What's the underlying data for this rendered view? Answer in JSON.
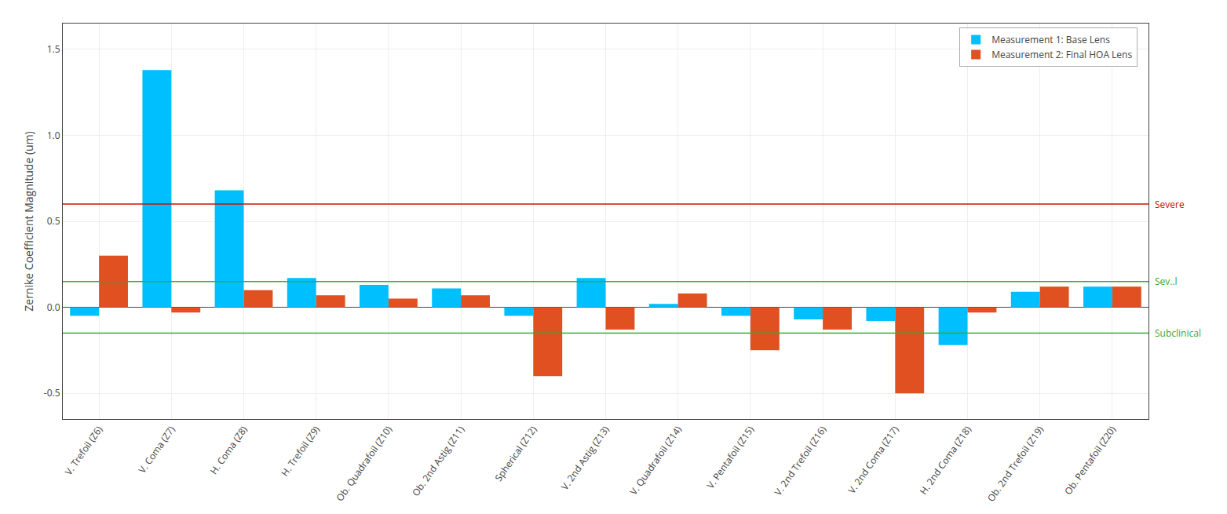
{
  "chart_data": {
    "type": "bar",
    "categories": [
      "V. Trefoil (Z6)",
      "V. Coma (Z7)",
      "H. Coma (Z8)",
      "H. Trefoil (Z9)",
      "Ob. Quadrafoil (Z10)",
      "Ob. 2nd Astig (Z11)",
      "Spherical (Z12)",
      "V. 2nd Astig (Z13)",
      "V. Quadrafoil (Z14)",
      "V. Pentafoil (Z15)",
      "V. 2nd Trefoil (Z16)",
      "V. 2nd Coma (Z17)",
      "H. 2nd Coma (Z18)",
      "Ob. 2nd Trefoil (Z19)",
      "Ob. Pentafoil (Z20)"
    ],
    "series": [
      {
        "name": "Measurement 1: Base Lens",
        "color": "#00BFFF",
        "values": [
          -0.05,
          1.38,
          0.68,
          0.17,
          0.13,
          0.11,
          -0.05,
          0.17,
          0.02,
          -0.05,
          -0.07,
          -0.08,
          -0.22,
          0.09,
          0.12
        ]
      },
      {
        "name": "Measurement 2: Final HOA Lens",
        "color": "#E05020",
        "values": [
          0.3,
          -0.03,
          0.1,
          0.07,
          0.05,
          0.07,
          -0.4,
          -0.13,
          0.08,
          -0.25,
          -0.13,
          -0.5,
          -0.03,
          0.12,
          0.12
        ]
      }
    ],
    "ylabel": "Zernike Coefficient Magnitude (um)",
    "ylim": [
      -0.65,
      1.65
    ],
    "yticks": [
      -0.5,
      {
        "value": 0,
        "label": "0.0"
      },
      0.5,
      {
        "value": 1,
        "label": "1.0"
      },
      1.5
    ],
    "annotations": [
      {
        "text": "Severe",
        "y": 0.6,
        "color": "#cc1100"
      },
      {
        "text": "Sev..l",
        "y": 0.15,
        "color": "#33aa33"
      },
      {
        "text": "Subclinical",
        "y": -0.15,
        "color": "#33aa33"
      }
    ],
    "grid": true,
    "legend": "upper right"
  }
}
